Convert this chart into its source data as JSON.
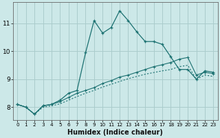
{
  "xlabel": "Humidex (Indice chaleur)",
  "bg_color": "#cce8e8",
  "grid_color": "#aacccc",
  "line_color": "#1a7070",
  "xlim": [
    -0.5,
    23.5
  ],
  "ylim": [
    7.55,
    11.75
  ],
  "yticks": [
    8,
    9,
    10,
    11
  ],
  "xticks": [
    0,
    1,
    2,
    3,
    4,
    5,
    6,
    7,
    8,
    9,
    10,
    11,
    12,
    13,
    14,
    15,
    16,
    17,
    18,
    19,
    20,
    21,
    22,
    23
  ],
  "line1_x": [
    0,
    1,
    2,
    3,
    4,
    5,
    6,
    7,
    8,
    9,
    10,
    11,
    12,
    13,
    14,
    15,
    16,
    17,
    18,
    19,
    20,
    21,
    22,
    23
  ],
  "line1_y": [
    8.1,
    8.0,
    7.75,
    8.05,
    8.1,
    8.25,
    8.5,
    8.6,
    9.95,
    11.1,
    10.65,
    10.85,
    11.45,
    11.1,
    10.7,
    10.35,
    10.35,
    10.25,
    9.8,
    9.35,
    9.35,
    9.0,
    9.3,
    9.25
  ],
  "line2_x": [
    0,
    1,
    2,
    3,
    4,
    5,
    6,
    7,
    8,
    9,
    10,
    11,
    12,
    13,
    14,
    15,
    16,
    17,
    18,
    19,
    20,
    21,
    22,
    23
  ],
  "line2_y": [
    8.1,
    8.0,
    7.75,
    8.05,
    8.1,
    8.2,
    8.35,
    8.5,
    8.6,
    8.7,
    8.85,
    8.95,
    9.08,
    9.15,
    9.25,
    9.35,
    9.45,
    9.52,
    9.6,
    9.72,
    9.78,
    9.15,
    9.25,
    9.2
  ],
  "line3_x": [
    0,
    1,
    2,
    3,
    4,
    5,
    6,
    7,
    8,
    9,
    10,
    11,
    12,
    13,
    14,
    15,
    16,
    17,
    18,
    19,
    20,
    21,
    22,
    23
  ],
  "line3_y": [
    8.1,
    8.0,
    7.75,
    8.0,
    8.05,
    8.12,
    8.25,
    8.38,
    8.5,
    8.6,
    8.72,
    8.82,
    8.92,
    9.02,
    9.1,
    9.18,
    9.24,
    9.3,
    9.35,
    9.45,
    9.5,
    9.0,
    9.15,
    9.1
  ]
}
